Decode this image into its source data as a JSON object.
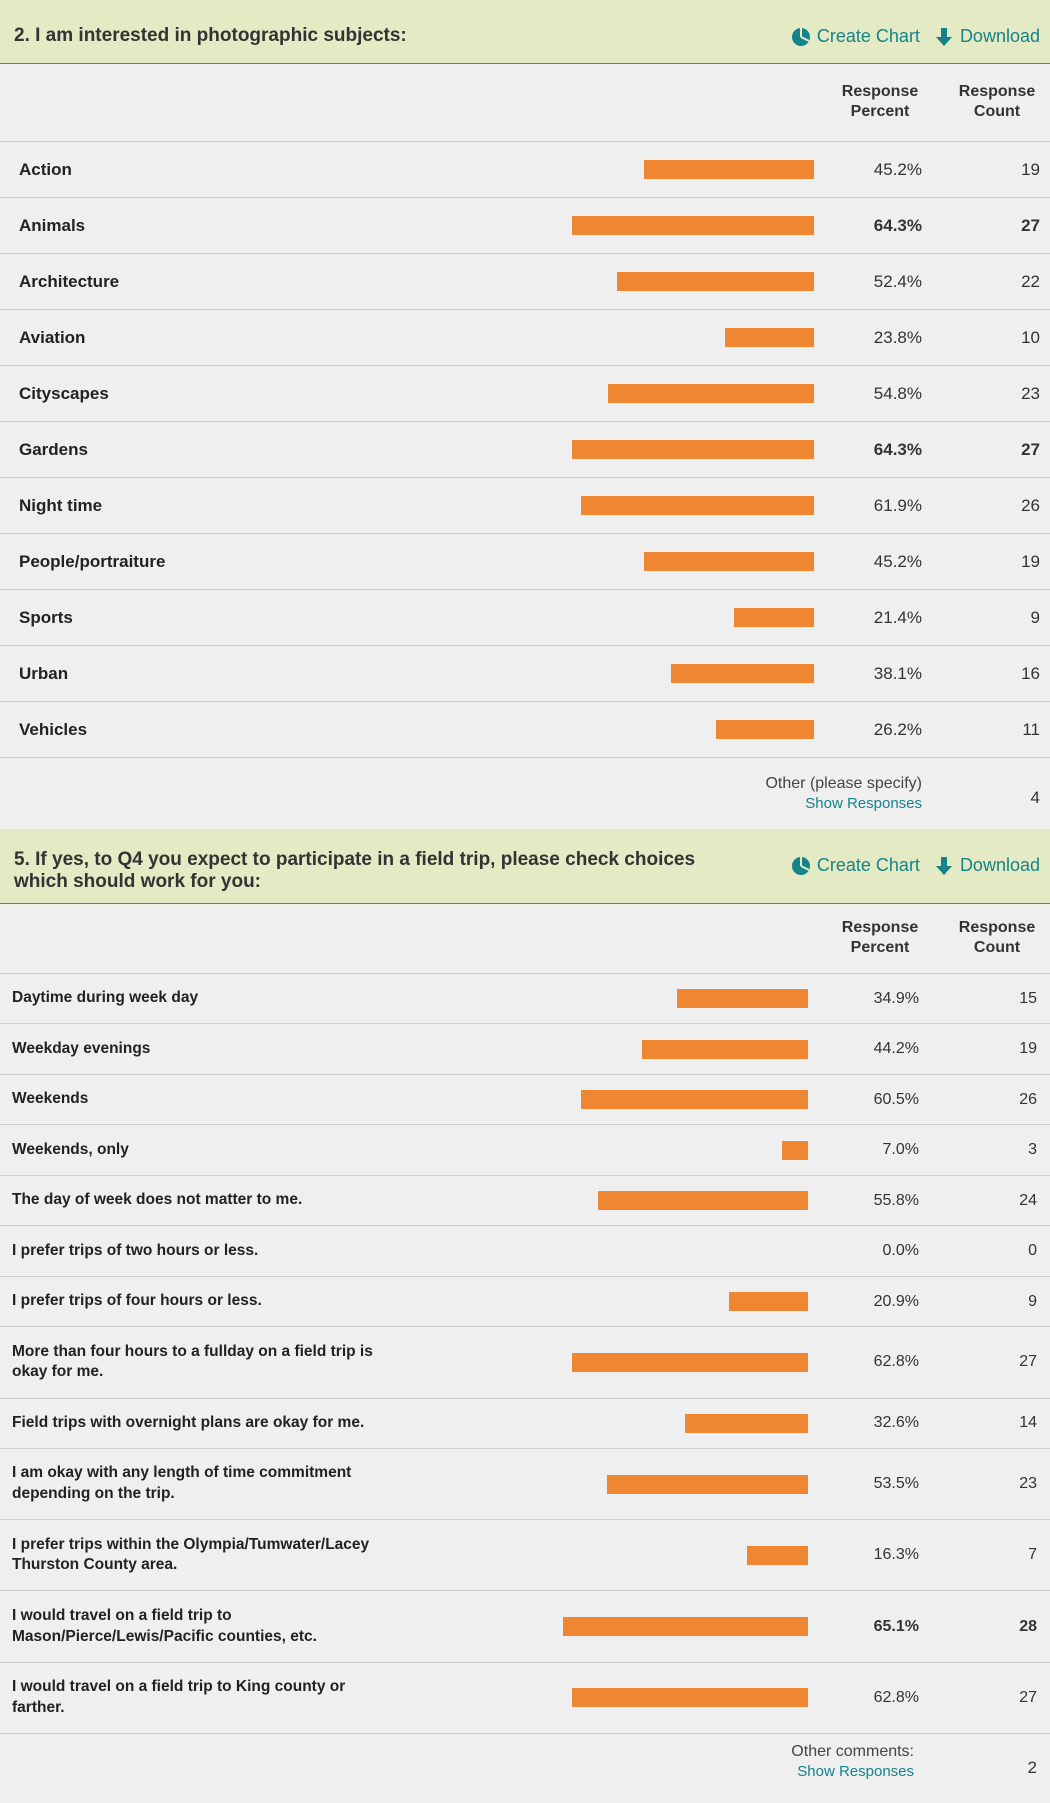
{
  "sections": [
    {
      "title": "2. I am interested in photographic subjects:",
      "actions": [
        "Create Chart",
        "Download"
      ],
      "columns": [
        "Response Percent",
        "Response Count"
      ],
      "rows": [
        {
          "label": "Action",
          "percent": 45.2,
          "percent_label": "45.2%",
          "count": 19
        },
        {
          "label": "Animals",
          "percent": 64.3,
          "percent_label": "64.3%",
          "count": 27
        },
        {
          "label": "Architecture",
          "percent": 52.4,
          "percent_label": "52.4%",
          "count": 22
        },
        {
          "label": "Aviation",
          "percent": 23.8,
          "percent_label": "23.8%",
          "count": 10
        },
        {
          "label": "Cityscapes",
          "percent": 54.8,
          "percent_label": "54.8%",
          "count": 23
        },
        {
          "label": "Gardens",
          "percent": 64.3,
          "percent_label": "64.3%",
          "count": 27
        },
        {
          "label": "Night time",
          "percent": 61.9,
          "percent_label": "61.9%",
          "count": 26
        },
        {
          "label": "People/portraiture",
          "percent": 45.2,
          "percent_label": "45.2%",
          "count": 19
        },
        {
          "label": "Sports",
          "percent": 21.4,
          "percent_label": "21.4%",
          "count": 9
        },
        {
          "label": "Urban",
          "percent": 38.1,
          "percent_label": "38.1%",
          "count": 16
        },
        {
          "label": "Vehicles",
          "percent": 26.2,
          "percent_label": "26.2%",
          "count": 11
        }
      ],
      "other": {
        "label": "Other (please specify)",
        "link": "Show Responses",
        "count": 4
      }
    },
    {
      "title": "5. If yes, to Q4 you expect to participate in a field trip, please check choices which should work for you:",
      "actions": [
        "Create Chart",
        "Download"
      ],
      "columns": [
        "Response Percent",
        "Response Count"
      ],
      "rows": [
        {
          "label": "Daytime during week day",
          "percent": 34.9,
          "percent_label": "34.9%",
          "count": 15
        },
        {
          "label": "Weekday evenings",
          "percent": 44.2,
          "percent_label": "44.2%",
          "count": 19
        },
        {
          "label": "Weekends",
          "percent": 60.5,
          "percent_label": "60.5%",
          "count": 26
        },
        {
          "label": "Weekends, only",
          "percent": 7.0,
          "percent_label": "7.0%",
          "count": 3
        },
        {
          "label": "The day of week does not matter to me.",
          "percent": 55.8,
          "percent_label": "55.8%",
          "count": 24
        },
        {
          "label": "I prefer trips of two hours or less.",
          "percent": 0.0,
          "percent_label": "0.0%",
          "count": 0
        },
        {
          "label": "I prefer trips of four hours or less.",
          "percent": 20.9,
          "percent_label": "20.9%",
          "count": 9
        },
        {
          "label": "More than four hours to a fullday on a field trip is okay for me.",
          "percent": 62.8,
          "percent_label": "62.8%",
          "count": 27
        },
        {
          "label": "Field trips with overnight plans are okay for me.",
          "percent": 32.6,
          "percent_label": "32.6%",
          "count": 14
        },
        {
          "label": "I am okay with any length of time commitment depending on the trip.",
          "percent": 53.5,
          "percent_label": "53.5%",
          "count": 23
        },
        {
          "label": "I prefer trips within the Olympia/Tumwater/Lacey Thurston County area.",
          "percent": 16.3,
          "percent_label": "16.3%",
          "count": 7
        },
        {
          "label": "I would travel on a field trip to Mason/Pierce/Lewis/Pacific counties, etc.",
          "percent": 65.1,
          "percent_label": "65.1%",
          "count": 28
        },
        {
          "label": "I would travel on a field trip to King county or farther.",
          "percent": 62.8,
          "percent_label": "62.8%",
          "count": 27
        }
      ],
      "other": {
        "label": "Other comments:",
        "link": "Show Responses",
        "count": 2
      }
    }
  ]
}
